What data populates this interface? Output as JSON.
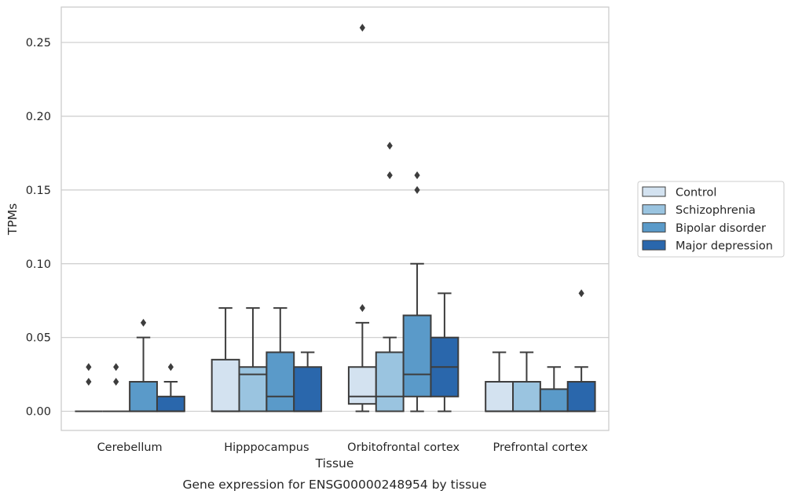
{
  "chart_data": {
    "type": "box",
    "xlabel": "Tissue",
    "ylabel": "TPMs",
    "caption": "Gene expression for ENSG00000248954 by tissue",
    "ylim": [
      -0.013,
      0.274
    ],
    "yticks": [
      "0.00",
      "0.05",
      "0.10",
      "0.15",
      "0.20",
      "0.25"
    ],
    "grid": "horizontal",
    "legend_position": "right-outside",
    "categories": [
      "Cerebellum",
      "Hipppocampus",
      "Orbitofrontal cortex",
      "Prefrontal cortex"
    ],
    "series": [
      {
        "name": "Control",
        "color": "#d3e2f0",
        "boxes": [
          {
            "q1": 0,
            "median": 0,
            "q3": 0,
            "whislo": 0,
            "whishi": 0,
            "fliers": [
              0.02,
              0.03
            ]
          },
          {
            "q1": 0,
            "median": 0,
            "q3": 0.035,
            "whislo": 0,
            "whishi": 0.07,
            "fliers": []
          },
          {
            "q1": 0.005,
            "median": 0.01,
            "q3": 0.03,
            "whislo": 0,
            "whishi": 0.06,
            "fliers": [
              0.07,
              0.26
            ]
          },
          {
            "q1": 0,
            "median": 0,
            "q3": 0.02,
            "whislo": 0,
            "whishi": 0.04,
            "fliers": []
          }
        ]
      },
      {
        "name": "Schizophrenia",
        "color": "#9ac4e0",
        "boxes": [
          {
            "q1": 0,
            "median": 0,
            "q3": 0,
            "whislo": 0,
            "whishi": 0,
            "fliers": [
              0.02,
              0.03
            ]
          },
          {
            "q1": 0,
            "median": 0.025,
            "q3": 0.03,
            "whislo": 0,
            "whishi": 0.07,
            "fliers": []
          },
          {
            "q1": 0,
            "median": 0.01,
            "q3": 0.04,
            "whislo": 0,
            "whishi": 0.05,
            "fliers": [
              0.16,
              0.18
            ]
          },
          {
            "q1": 0,
            "median": 0,
            "q3": 0.02,
            "whislo": 0,
            "whishi": 0.04,
            "fliers": []
          }
        ]
      },
      {
        "name": "Bipolar disorder",
        "color": "#5a9ac9",
        "boxes": [
          {
            "q1": 0,
            "median": 0,
            "q3": 0.02,
            "whislo": 0,
            "whishi": 0.05,
            "fliers": [
              0.06
            ]
          },
          {
            "q1": 0,
            "median": 0.01,
            "q3": 0.04,
            "whislo": 0,
            "whishi": 0.07,
            "fliers": []
          },
          {
            "q1": 0.01,
            "median": 0.025,
            "q3": 0.065,
            "whislo": 0,
            "whishi": 0.1,
            "fliers": [
              0.15,
              0.16
            ]
          },
          {
            "q1": 0,
            "median": 0,
            "q3": 0.015,
            "whislo": 0,
            "whishi": 0.03,
            "fliers": []
          }
        ]
      },
      {
        "name": "Major depression",
        "color": "#2a67ac",
        "boxes": [
          {
            "q1": 0,
            "median": 0,
            "q3": 0.01,
            "whislo": 0,
            "whishi": 0.02,
            "fliers": [
              0.03
            ]
          },
          {
            "q1": 0,
            "median": 0,
            "q3": 0.03,
            "whislo": 0,
            "whishi": 0.04,
            "fliers": []
          },
          {
            "q1": 0.01,
            "median": 0.03,
            "q3": 0.05,
            "whislo": 0,
            "whishi": 0.08,
            "fliers": []
          },
          {
            "q1": 0,
            "median": 0,
            "q3": 0.02,
            "whislo": 0,
            "whishi": 0.03,
            "fliers": [
              0.08
            ]
          }
        ]
      }
    ]
  }
}
